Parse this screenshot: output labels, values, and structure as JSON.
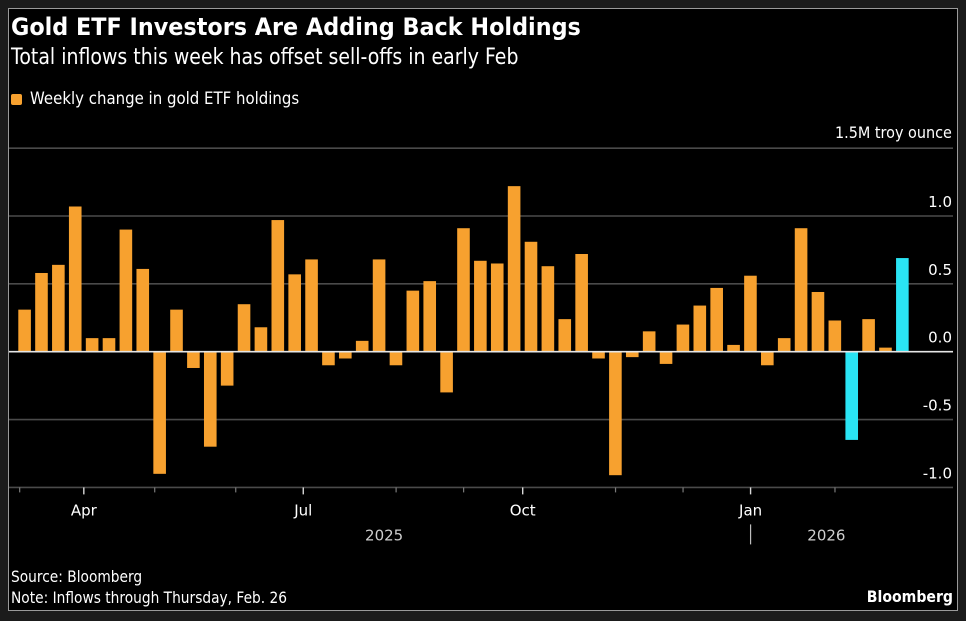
{
  "header": {
    "title": "Gold ETF Investors Are Adding Back Holdings",
    "subtitle": "Total inflows this week has offset sell-offs in early Feb"
  },
  "legend": {
    "label": "Weekly change in gold ETF holdings",
    "color": "#f7a12f"
  },
  "footer": {
    "source": "Source: Bloomberg",
    "note": "Note: Inflows through Thursday, Feb. 26",
    "brand": "Bloomberg"
  },
  "colors": {
    "bar_default": "#f7a12f",
    "bar_highlight": "#2ae4f4",
    "grid": "#4a4a4a",
    "zero_line": "#e6e6e6",
    "axis_text": "#ffffff",
    "year_text": "#cfcfcf"
  },
  "chart_data": {
    "type": "bar",
    "title": "Gold ETF Investors Are Adding Back Holdings",
    "subtitle": "Total inflows this week has offset sell-offs in early Feb",
    "xlabel": "",
    "ylabel": "1.5M troy ounce",
    "unit_label": "1.5M troy ounce",
    "ylim": [
      -1.0,
      1.5
    ],
    "yticks": [
      {
        "value": 1.5,
        "label": ""
      },
      {
        "value": 1.0,
        "label": "1.0"
      },
      {
        "value": 0.5,
        "label": "0.5"
      },
      {
        "value": 0.0,
        "label": "0.0"
      },
      {
        "value": -0.5,
        "label": "-0.5"
      },
      {
        "value": -1.0,
        "label": "-1.0"
      }
    ],
    "grid": true,
    "legend_position": "top-left",
    "x_period": "weekly, Mar 2025 – Feb 2026",
    "xticks_major": [
      {
        "index": 4,
        "label": "Apr"
      },
      {
        "index": 17,
        "label": "Jul"
      },
      {
        "index": 30,
        "label": "Oct"
      },
      {
        "index": 43.5,
        "label": "Jan"
      }
    ],
    "xticks_minor": [
      0.2,
      8.2,
      13,
      22.5,
      26.5,
      35.5,
      39.5,
      48.5
    ],
    "year_labels": [
      {
        "label": "2025",
        "center_index": 21.3
      },
      {
        "label": "2026",
        "center_index": 47.5
      }
    ],
    "year_separator_index": 43.5,
    "series": [
      {
        "name": "Weekly change in gold ETF holdings",
        "values": [
          0.31,
          0.58,
          0.64,
          1.07,
          0.1,
          0.1,
          0.9,
          0.61,
          -0.9,
          0.31,
          -0.12,
          -0.7,
          -0.25,
          0.35,
          0.18,
          0.97,
          0.57,
          0.68,
          -0.1,
          -0.05,
          0.08,
          0.68,
          -0.1,
          0.45,
          0.52,
          -0.3,
          0.91,
          0.67,
          0.65,
          1.22,
          0.81,
          0.63,
          0.24,
          0.72,
          -0.05,
          -0.91,
          -0.04,
          0.15,
          -0.09,
          0.2,
          0.34,
          0.47,
          0.05,
          0.56,
          -0.1,
          0.1,
          0.91,
          0.44,
          0.23,
          -0.65,
          0.24,
          0.03,
          0.69
        ],
        "highlight_indices": [
          49,
          52
        ]
      }
    ]
  }
}
